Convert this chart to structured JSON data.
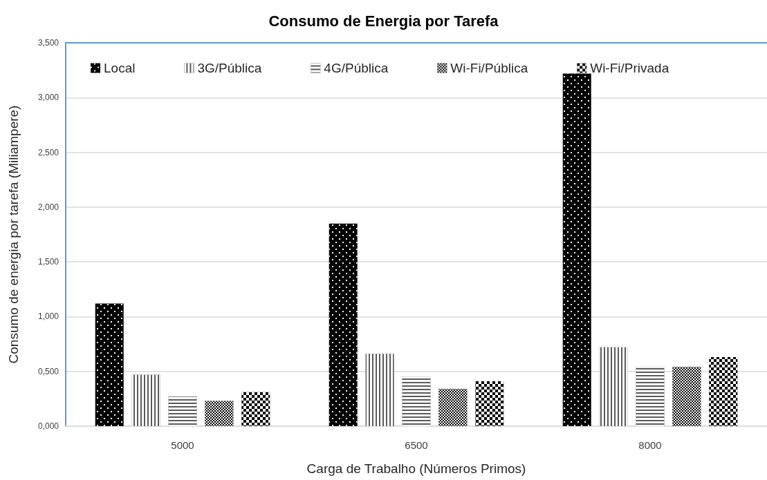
{
  "chart_data": {
    "type": "bar",
    "title": "Consumo de Energia por Tarefa",
    "xlabel": "Carga de Trabalho (Números Primos)",
    "ylabel": "Consumo de energia por tarefa (Miliampere)",
    "categories": [
      "5000",
      "6500",
      "8000"
    ],
    "series": [
      {
        "name": "Local",
        "color": "#000000",
        "values": [
          1.12,
          1.85,
          3.22
        ]
      },
      {
        "name": "3G/Pública",
        "color": "#595959",
        "values": [
          0.47,
          0.66,
          0.72
        ]
      },
      {
        "name": "4G/Pública",
        "color": "#595959",
        "values": [
          0.27,
          0.45,
          0.54
        ]
      },
      {
        "name": "Wi-Fi/Pública",
        "color": "#000000",
        "values": [
          0.23,
          0.34,
          0.54
        ]
      },
      {
        "name": "Wi-Fi/Privada",
        "color": "#000000",
        "values": [
          0.31,
          0.41,
          0.63
        ]
      }
    ],
    "ylim": [
      0,
      3.5
    ],
    "yticks": [
      {
        "value": 0,
        "label": "0,000"
      },
      {
        "value": 0.5,
        "label": "0,500"
      },
      {
        "value": 1,
        "label": "1,000"
      },
      {
        "value": 1.5,
        "label": "1,500"
      },
      {
        "value": 2,
        "label": "2,000"
      },
      {
        "value": 2.5,
        "label": "2,500"
      },
      {
        "value": 3,
        "label": "3,000"
      },
      {
        "value": 3.5,
        "label": "3,500"
      }
    ],
    "grid": "y",
    "legend": "top left"
  }
}
